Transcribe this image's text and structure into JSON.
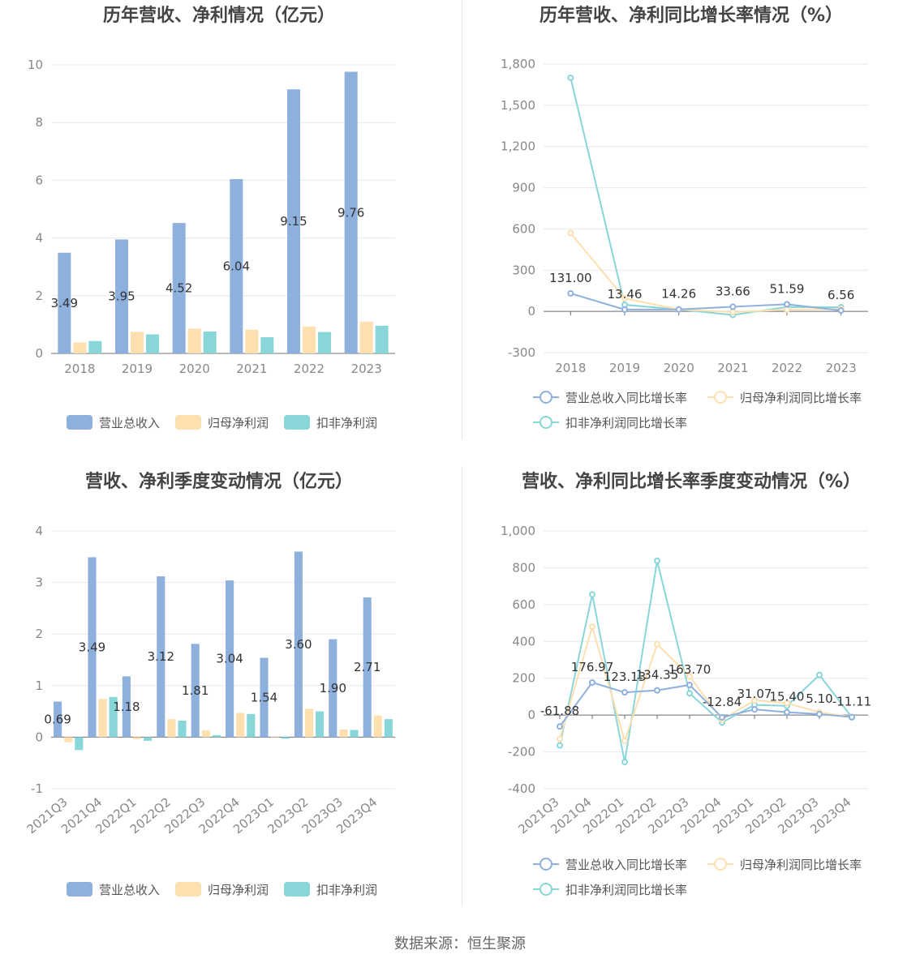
{
  "source_label": "数据来源：恒生聚源",
  "colors": {
    "revenue": "#8eb0dd",
    "net_profit": "#fee0b0",
    "deducted": "#89d6d9"
  },
  "chart_data": [
    {
      "type": "bar",
      "title": "历年营收、净利情况（亿元）",
      "categories": [
        "2018",
        "2019",
        "2020",
        "2021",
        "2022",
        "2023"
      ],
      "ylim": [
        0,
        10
      ],
      "yticks": [
        0,
        2,
        4,
        6,
        8,
        10
      ],
      "ytick_labels": [
        "0",
        "2",
        "4",
        "6",
        "8",
        "10"
      ],
      "legend_position": "bottom",
      "series": [
        {
          "name": "营业总收入",
          "values": [
            3.49,
            3.95,
            4.52,
            6.04,
            9.15,
            9.76
          ],
          "labels": [
            "3.49",
            "3.95",
            "4.52",
            "6.04",
            "9.15",
            "9.76"
          ]
        },
        {
          "name": "归母净利润",
          "values": [
            0.38,
            0.75,
            0.86,
            0.82,
            0.93,
            1.1
          ]
        },
        {
          "name": "扣非净利润",
          "values": [
            0.43,
            0.66,
            0.76,
            0.56,
            0.74,
            0.96
          ]
        }
      ]
    },
    {
      "type": "line",
      "title": "历年营收、净利同比增长率情况（%）",
      "categories": [
        "2018",
        "2019",
        "2020",
        "2021",
        "2022",
        "2023"
      ],
      "ylim": [
        -300,
        1800
      ],
      "yticks": [
        -300,
        0,
        300,
        600,
        900,
        1200,
        1500,
        1800
      ],
      "ytick_labels": [
        "-300",
        "0",
        "300",
        "600",
        "900",
        "1,200",
        "1,500",
        "1,800"
      ],
      "legend_position": "bottom",
      "series": [
        {
          "name": "营业总收入同比增长率",
          "values": [
            131.0,
            13.46,
            14.26,
            33.66,
            51.59,
            6.56
          ],
          "labels": [
            "131.00",
            "13.46",
            "14.26",
            "33.66",
            "51.59",
            "6.56"
          ]
        },
        {
          "name": "归母净利润同比增长率",
          "values": [
            570,
            95,
            14,
            -5,
            13,
            18
          ]
        },
        {
          "name": "扣非净利润同比增长率",
          "values": [
            1700,
            48,
            14,
            -26,
            32,
            30
          ]
        }
      ]
    },
    {
      "type": "bar",
      "title": "营收、净利季度变动情况（亿元）",
      "categories": [
        "2021Q3",
        "2021Q4",
        "2022Q1",
        "2022Q2",
        "2022Q3",
        "2022Q4",
        "2023Q1",
        "2023Q2",
        "2023Q3",
        "2023Q4"
      ],
      "ylim": [
        -1,
        4
      ],
      "yticks": [
        -1,
        0,
        1,
        2,
        3,
        4
      ],
      "ytick_labels": [
        "-1",
        "0",
        "1",
        "2",
        "3",
        "4"
      ],
      "legend_position": "bottom",
      "series": [
        {
          "name": "营业总收入",
          "values": [
            0.69,
            3.49,
            1.18,
            3.12,
            1.81,
            3.04,
            1.54,
            3.6,
            1.9,
            2.71
          ],
          "labels": [
            "0.69",
            "3.49",
            "1.18",
            "3.12",
            "1.81",
            "3.04",
            "1.54",
            "3.60",
            "1.90",
            "2.71"
          ]
        },
        {
          "name": "归母净利润",
          "values": [
            -0.1,
            0.74,
            -0.04,
            0.35,
            0.13,
            0.47,
            -0.01,
            0.55,
            0.15,
            0.42
          ]
        },
        {
          "name": "扣非净利润",
          "values": [
            -0.25,
            0.78,
            -0.07,
            0.32,
            0.04,
            0.45,
            -0.03,
            0.5,
            0.14,
            0.35
          ]
        }
      ]
    },
    {
      "type": "line",
      "title": "营收、净利同比增长率季度变动情况（%）",
      "categories": [
        "2021Q3",
        "2021Q4",
        "2022Q1",
        "2022Q2",
        "2022Q3",
        "2022Q4",
        "2023Q1",
        "2023Q2",
        "2023Q3",
        "2023Q4"
      ],
      "ylim": [
        -400,
        1000
      ],
      "yticks": [
        -400,
        -200,
        0,
        200,
        400,
        600,
        800,
        1000
      ],
      "ytick_labels": [
        "-400",
        "-200",
        "0",
        "200",
        "400",
        "600",
        "800",
        "1,000"
      ],
      "legend_position": "bottom",
      "series": [
        {
          "name": "营业总收入同比增长率",
          "values": [
            -61.88,
            176.97,
            123.13,
            134.35,
            163.7,
            -12.84,
            31.07,
            15.4,
            5.1,
            -11.11
          ],
          "labels": [
            "-61.88",
            "176.97",
            "123.13",
            "134.35",
            "163.70",
            "-12.84",
            "31.07",
            "15.40",
            "5.10",
            "-11.11"
          ]
        },
        {
          "name": "归母净利润同比增长率",
          "values": [
            -130,
            480,
            -140,
            385,
            210,
            -25,
            80,
            65,
            15,
            -10
          ]
        },
        {
          "name": "扣非净利润同比增长率",
          "values": [
            -165,
            655,
            -255,
            838,
            118,
            -40,
            55,
            50,
            218,
            -12
          ]
        }
      ]
    }
  ]
}
